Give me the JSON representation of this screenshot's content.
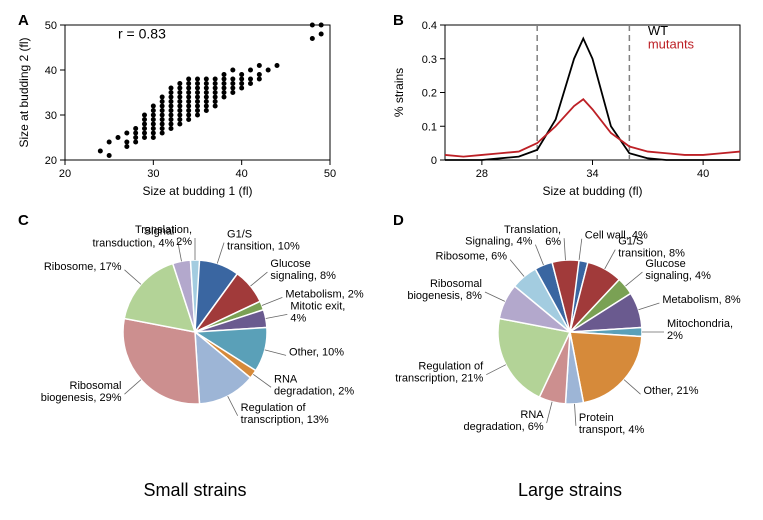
{
  "panelA": {
    "label": "A",
    "type": "scatter",
    "xlabel": "Size at budding 1 (fl)",
    "ylabel": "Size at budding 2 (fl)",
    "xlim": [
      20,
      50
    ],
    "ylim": [
      20,
      50
    ],
    "xticks": [
      20,
      30,
      40,
      50
    ],
    "yticks": [
      20,
      30,
      40,
      50
    ],
    "annotation": "r = 0.83",
    "annotation_fontsize": 14,
    "marker_color": "#000000",
    "marker_size": 5,
    "background_color": "#ffffff",
    "points": [
      [
        24,
        22
      ],
      [
        25,
        21
      ],
      [
        25,
        24
      ],
      [
        26,
        25
      ],
      [
        27,
        24
      ],
      [
        27,
        26
      ],
      [
        27,
        23
      ],
      [
        28,
        25
      ],
      [
        28,
        27
      ],
      [
        28,
        26
      ],
      [
        28,
        24
      ],
      [
        29,
        26
      ],
      [
        29,
        28
      ],
      [
        29,
        30
      ],
      [
        29,
        27
      ],
      [
        29,
        25
      ],
      [
        29,
        29
      ],
      [
        30,
        27
      ],
      [
        30,
        29
      ],
      [
        30,
        31
      ],
      [
        30,
        26
      ],
      [
        30,
        28
      ],
      [
        30,
        30
      ],
      [
        30,
        32
      ],
      [
        30,
        25
      ],
      [
        31,
        28
      ],
      [
        31,
        30
      ],
      [
        31,
        32
      ],
      [
        31,
        27
      ],
      [
        31,
        29
      ],
      [
        31,
        33
      ],
      [
        31,
        31
      ],
      [
        31,
        34
      ],
      [
        31,
        26
      ],
      [
        32,
        29
      ],
      [
        32,
        31
      ],
      [
        32,
        33
      ],
      [
        32,
        28
      ],
      [
        32,
        30
      ],
      [
        32,
        32
      ],
      [
        32,
        34
      ],
      [
        32,
        27
      ],
      [
        32,
        35
      ],
      [
        32,
        36
      ],
      [
        33,
        30
      ],
      [
        33,
        32
      ],
      [
        33,
        34
      ],
      [
        33,
        29
      ],
      [
        33,
        31
      ],
      [
        33,
        33
      ],
      [
        33,
        35
      ],
      [
        33,
        28
      ],
      [
        33,
        36
      ],
      [
        33,
        37
      ],
      [
        34,
        31
      ],
      [
        34,
        33
      ],
      [
        34,
        35
      ],
      [
        34,
        30
      ],
      [
        34,
        32
      ],
      [
        34,
        34
      ],
      [
        34,
        36
      ],
      [
        34,
        29
      ],
      [
        34,
        37
      ],
      [
        34,
        38
      ],
      [
        35,
        32
      ],
      [
        35,
        34
      ],
      [
        35,
        36
      ],
      [
        35,
        31
      ],
      [
        35,
        33
      ],
      [
        35,
        35
      ],
      [
        35,
        37
      ],
      [
        35,
        30
      ],
      [
        35,
        38
      ],
      [
        36,
        33
      ],
      [
        36,
        35
      ],
      [
        36,
        37
      ],
      [
        36,
        32
      ],
      [
        36,
        34
      ],
      [
        36,
        36
      ],
      [
        36,
        31
      ],
      [
        36,
        38
      ],
      [
        37,
        34
      ],
      [
        37,
        36
      ],
      [
        37,
        35
      ],
      [
        37,
        37
      ],
      [
        37,
        33
      ],
      [
        37,
        38
      ],
      [
        37,
        32
      ],
      [
        38,
        35
      ],
      [
        38,
        37
      ],
      [
        38,
        36
      ],
      [
        38,
        34
      ],
      [
        38,
        38
      ],
      [
        38,
        39
      ],
      [
        39,
        36
      ],
      [
        39,
        38
      ],
      [
        39,
        37
      ],
      [
        39,
        35
      ],
      [
        39,
        40
      ],
      [
        40,
        37
      ],
      [
        40,
        39
      ],
      [
        40,
        38
      ],
      [
        40,
        36
      ],
      [
        41,
        38
      ],
      [
        41,
        40
      ],
      [
        41,
        37
      ],
      [
        42,
        39
      ],
      [
        42,
        41
      ],
      [
        42,
        38
      ],
      [
        43,
        40
      ],
      [
        44,
        41
      ],
      [
        48,
        47
      ],
      [
        48,
        50
      ],
      [
        49,
        48
      ],
      [
        49,
        50
      ]
    ]
  },
  "panelB": {
    "label": "B",
    "type": "line",
    "xlabel": "Size at budding (fl)",
    "ylabel": "% strains",
    "xlim": [
      26,
      42
    ],
    "ylim": [
      0,
      0.4
    ],
    "xticks": [
      28,
      34,
      40
    ],
    "yticks": [
      0,
      0.1,
      0.2,
      0.3,
      0.4
    ],
    "background_color": "#ffffff",
    "vline_color": "#808080",
    "vlines": [
      31,
      36
    ],
    "series": [
      {
        "name": "WT",
        "color": "#000000",
        "points": [
          [
            26,
            0
          ],
          [
            27,
            0
          ],
          [
            28,
            0
          ],
          [
            29,
            0.005
          ],
          [
            30,
            0.01
          ],
          [
            31,
            0.03
          ],
          [
            32,
            0.12
          ],
          [
            33,
            0.3
          ],
          [
            33.5,
            0.36
          ],
          [
            34,
            0.3
          ],
          [
            35,
            0.1
          ],
          [
            36,
            0.02
          ],
          [
            37,
            0.005
          ],
          [
            38,
            0
          ],
          [
            40,
            0
          ],
          [
            42,
            0
          ]
        ]
      },
      {
        "name": "mutants",
        "color": "#bd2026",
        "points": [
          [
            26,
            0.015
          ],
          [
            27,
            0.01
          ],
          [
            28,
            0.015
          ],
          [
            29,
            0.02
          ],
          [
            30,
            0.025
          ],
          [
            31,
            0.05
          ],
          [
            32,
            0.1
          ],
          [
            33,
            0.16
          ],
          [
            33.5,
            0.18
          ],
          [
            34,
            0.15
          ],
          [
            35,
            0.08
          ],
          [
            36,
            0.04
          ],
          [
            37,
            0.025
          ],
          [
            38,
            0.02
          ],
          [
            39,
            0.015
          ],
          [
            40,
            0.015
          ],
          [
            41,
            0.02
          ],
          [
            42,
            0.025
          ]
        ]
      }
    ],
    "legend": [
      {
        "text": "WT",
        "color": "#000000"
      },
      {
        "text": "mutants",
        "color": "#bd2026"
      }
    ]
  },
  "panelC": {
    "label": "C",
    "type": "pie",
    "title": "Small strains",
    "title_fontsize": 18,
    "stroke_color": "#ffffff",
    "label_fontsize": 11,
    "slices": [
      {
        "label": "G1/S transition",
        "pct": 10,
        "color": "#3a66a1"
      },
      {
        "label": "Glucose signaling",
        "pct": 8,
        "color": "#a13a3a"
      },
      {
        "label": "Metabolism",
        "pct": 2,
        "color": "#7aa154"
      },
      {
        "label": "Mitotic exit",
        "pct": 4,
        "color": "#6a5a8f"
      },
      {
        "label": "Other ",
        "pct": 10,
        "color": "#5aa0b8"
      },
      {
        "label": "RNA degradation",
        "pct": 2,
        "color": "#d68a3a"
      },
      {
        "label": "Regulation of transcription",
        "pct": 13,
        "color": "#9db5d6"
      },
      {
        "label": "Ribosomal biogenesis",
        "pct": 29,
        "color": "#cc8f8f"
      },
      {
        "label": "Ribosome",
        "pct": 17,
        "color": "#b3d397"
      },
      {
        "label": "Signal transduction",
        "pct": 4,
        "color": "#b3a8cc"
      },
      {
        "label": "Translation",
        "pct": 2,
        "color": "#a3cce0"
      }
    ]
  },
  "panelD": {
    "label": "D",
    "type": "pie",
    "title": "Large strains",
    "title_fontsize": 18,
    "stroke_color": "#ffffff",
    "label_fontsize": 11,
    "slices": [
      {
        "label": "Cell wall",
        "pct": 4,
        "color": "#3a66a1"
      },
      {
        "label": "G1/S transition",
        "pct": 8,
        "color": "#a13a3a"
      },
      {
        "label": "Glucose signaling",
        "pct": 4,
        "color": "#7aa154"
      },
      {
        "label": "Metabolism",
        "pct": 8,
        "color": "#6a5a8f"
      },
      {
        "label": "Mitochondria",
        "pct": 2,
        "color": "#5aa0b8"
      },
      {
        "label": "Other",
        "pct": 21,
        "color": "#d68a3a"
      },
      {
        "label": "Protein transport",
        "pct": 4,
        "color": "#9db5d6"
      },
      {
        "label": "RNA degradation",
        "pct": 6,
        "color": "#cc8f8f"
      },
      {
        "label": "Regulation of transcription",
        "pct": 21,
        "color": "#b3d397"
      },
      {
        "label": "Ribosomal biogenesis",
        "pct": 8,
        "color": "#b3a8cc"
      },
      {
        "label": "Ribosome",
        "pct": 6,
        "color": "#a3cce0"
      },
      {
        "label": "Signaling",
        "pct": 4,
        "color": "#3a66a1"
      },
      {
        "label": "Translation",
        "pct": 6,
        "color": "#a13a3a"
      }
    ]
  }
}
